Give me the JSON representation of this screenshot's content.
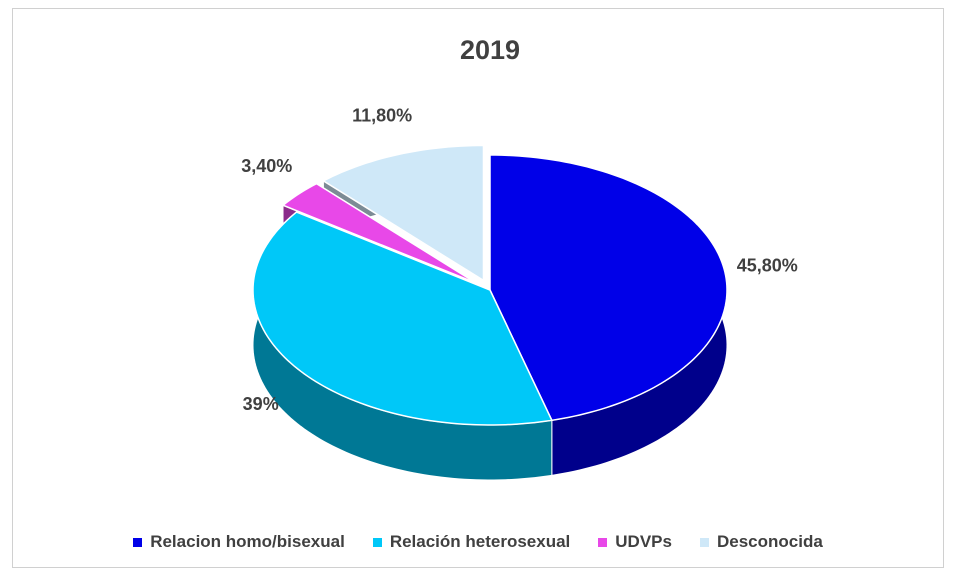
{
  "chart_data": {
    "type": "pie",
    "title": "2019",
    "categories": [
      "Relacion homo/bisexual",
      "Relación heterosexual",
      "UDVPs",
      "Desconocida"
    ],
    "values": [
      45.8,
      39,
      3.4,
      11.8
    ],
    "value_labels": [
      "45,80%",
      "39%",
      "3,40%",
      "11,80%"
    ],
    "colors": [
      "#0000e8",
      "#00c8f8",
      "#e848e8",
      "#cfe8f8"
    ],
    "exploded": [
      false,
      false,
      true,
      true
    ],
    "legend": "bottom"
  }
}
